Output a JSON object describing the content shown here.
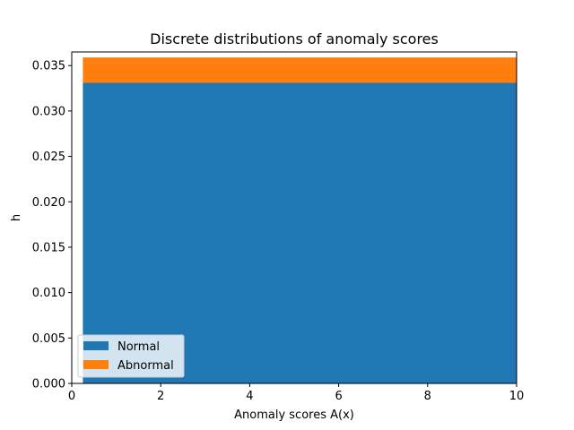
{
  "chart_data": {
    "type": "area",
    "title": "Discrete distributions of anomaly scores",
    "xlabel": "Anomaly scores A(x)",
    "ylabel": "h",
    "xlim": [
      0,
      10
    ],
    "ylim": [
      0,
      0.0365
    ],
    "x_ticks": [
      "0",
      "2",
      "4",
      "6",
      "8",
      "10"
    ],
    "y_ticks": [
      "0.000",
      "0.005",
      "0.010",
      "0.015",
      "0.020",
      "0.025",
      "0.030",
      "0.035"
    ],
    "stacked": true,
    "series": [
      {
        "name": "Normal",
        "color": "#1f77b4",
        "x": [
          0.25,
          10
        ],
        "values": [
          0.0331,
          0.0331
        ]
      },
      {
        "name": "Abnormal",
        "color": "#ff7f0e",
        "x": [
          0.25,
          10
        ],
        "values": [
          0.0028,
          0.0028
        ]
      }
    ],
    "legend": {
      "placement": "lower-left",
      "items": [
        "Normal",
        "Abnormal"
      ]
    },
    "grid": false
  }
}
